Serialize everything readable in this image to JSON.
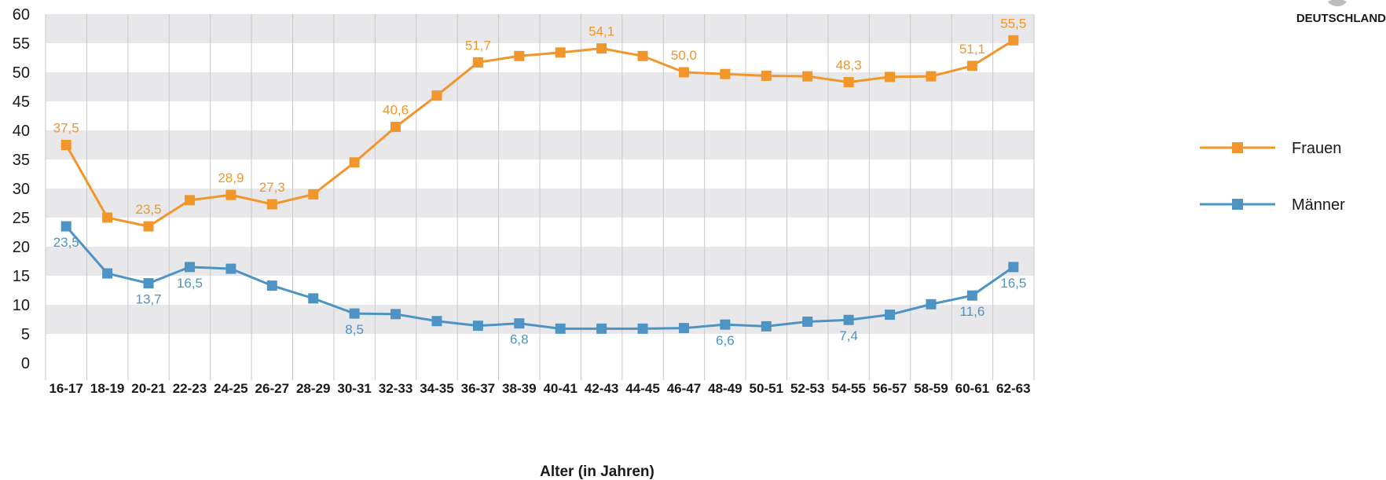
{
  "brand": {
    "text": "DEUTSCHLAND"
  },
  "chart_data": {
    "type": "line",
    "xlabel": "Alter (in Jahren)",
    "ylabel": "",
    "ylim": [
      0,
      60
    ],
    "yticks": [
      "0",
      "5",
      "10",
      "15",
      "20",
      "25",
      "30",
      "35",
      "40",
      "45",
      "50",
      "55",
      "60"
    ],
    "grid": "horizontal bands",
    "legend_position": "right",
    "categories": [
      "16-17",
      "18-19",
      "20-21",
      "22-23",
      "24-25",
      "26-27",
      "28-29",
      "30-31",
      "32-33",
      "34-35",
      "36-37",
      "38-39",
      "40-41",
      "42-43",
      "44-45",
      "46-47",
      "48-49",
      "50-51",
      "52-53",
      "54-55",
      "56-57",
      "58-59",
      "60-61",
      "62-63"
    ],
    "series": [
      {
        "name": "Frauen",
        "color": "#f0962a",
        "values": [
          37.5,
          25.0,
          23.5,
          28.0,
          28.9,
          27.3,
          29.0,
          34.5,
          40.6,
          46.0,
          51.7,
          52.8,
          53.4,
          54.1,
          52.8,
          50.0,
          49.7,
          49.4,
          49.3,
          48.3,
          49.2,
          49.3,
          51.1,
          55.5
        ],
        "labels": [
          {
            "index": 0,
            "text": "37,5"
          },
          {
            "index": 2,
            "text": "23,5"
          },
          {
            "index": 4,
            "text": "28,9"
          },
          {
            "index": 5,
            "text": "27,3"
          },
          {
            "index": 8,
            "text": "40,6"
          },
          {
            "index": 10,
            "text": "51,7"
          },
          {
            "index": 13,
            "text": "54,1"
          },
          {
            "index": 15,
            "text": "50,0"
          },
          {
            "index": 19,
            "text": "48,3"
          },
          {
            "index": 22,
            "text": "51,1"
          },
          {
            "index": 23,
            "text": "55,5"
          }
        ]
      },
      {
        "name": "Männer",
        "color": "#4d93c4",
        "values": [
          23.5,
          15.4,
          13.7,
          16.5,
          16.2,
          13.3,
          11.1,
          8.5,
          8.4,
          7.2,
          6.4,
          6.8,
          5.9,
          5.9,
          5.9,
          6.0,
          6.6,
          6.3,
          7.1,
          7.4,
          8.3,
          10.1,
          11.6,
          16.5
        ],
        "labels": [
          {
            "index": 0,
            "text": "23,5"
          },
          {
            "index": 2,
            "text": "13,7"
          },
          {
            "index": 3,
            "text": "16,5"
          },
          {
            "index": 7,
            "text": "8,5"
          },
          {
            "index": 11,
            "text": "6,8"
          },
          {
            "index": 16,
            "text": "6,6"
          },
          {
            "index": 19,
            "text": "7,4"
          },
          {
            "index": 22,
            "text": "11,6"
          },
          {
            "index": 23,
            "text": "16,5"
          }
        ]
      }
    ]
  }
}
